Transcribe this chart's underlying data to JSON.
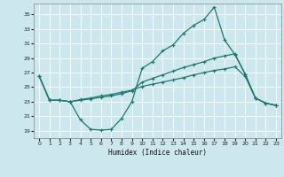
{
  "title": "",
  "xlabel": "Humidex (Indice chaleur)",
  "background_color": "#cce8ee",
  "line_color": "#1a7a6e",
  "grid_color": "#ffffff",
  "xlim": [
    -0.5,
    23.5
  ],
  "ylim": [
    18.0,
    36.5
  ],
  "yticks": [
    19,
    21,
    23,
    25,
    27,
    29,
    31,
    33,
    35
  ],
  "xticks": [
    0,
    1,
    2,
    3,
    4,
    5,
    6,
    7,
    8,
    9,
    10,
    11,
    12,
    13,
    14,
    15,
    16,
    17,
    18,
    19,
    20,
    21,
    22,
    23
  ],
  "curve1_y": [
    26.5,
    23.2,
    23.2,
    23.0,
    20.5,
    19.2,
    19.1,
    19.2,
    20.7,
    23.0,
    27.6,
    28.5,
    30.0,
    30.8,
    32.4,
    33.5,
    34.3,
    36.0,
    31.5,
    29.5,
    26.8,
    23.5,
    22.8,
    22.5
  ],
  "curve2_y": [
    26.5,
    23.2,
    23.2,
    23.0,
    23.2,
    23.4,
    23.6,
    23.8,
    24.1,
    24.5,
    25.7,
    26.2,
    26.7,
    27.2,
    27.7,
    28.1,
    28.5,
    29.0,
    29.3,
    29.6,
    26.8,
    23.5,
    22.8,
    22.5
  ],
  "curve3_y": [
    26.5,
    23.2,
    23.2,
    23.0,
    23.3,
    23.5,
    23.8,
    24.0,
    24.3,
    24.6,
    25.1,
    25.4,
    25.7,
    26.0,
    26.3,
    26.7,
    27.0,
    27.3,
    27.5,
    27.8,
    26.5,
    23.5,
    22.8,
    22.5
  ]
}
